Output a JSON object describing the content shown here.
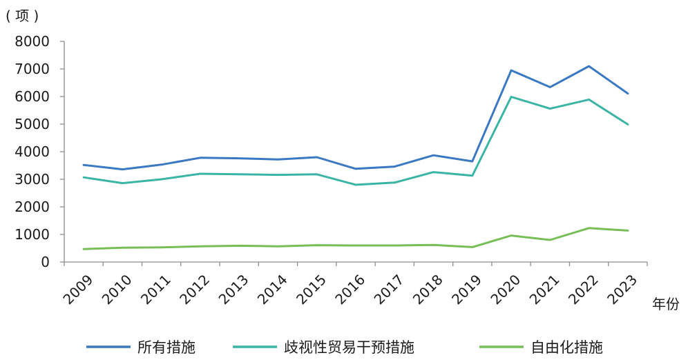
{
  "chart_data": {
    "type": "line",
    "y_unit": "( 项 )",
    "x_unit": "年份",
    "x": [
      "2009",
      "2010",
      "2011",
      "2012",
      "2013",
      "2014",
      "2015",
      "2016",
      "2017",
      "2018",
      "2019",
      "2020",
      "2021",
      "2022",
      "2023"
    ],
    "ylim": [
      0,
      8000
    ],
    "yticks": [
      "0",
      "1000",
      "2000",
      "3000",
      "4000",
      "5000",
      "6000",
      "7000",
      "8000"
    ],
    "grid": false,
    "legend_position": "bottom",
    "series": [
      {
        "name": "所有措施",
        "color": "#3a78c2",
        "values": [
          3520,
          3360,
          3530,
          3780,
          3760,
          3720,
          3800,
          3380,
          3460,
          3870,
          3650,
          6950,
          6340,
          7100,
          6110
        ]
      },
      {
        "name": "歧视性贸易干预措施",
        "color": "#3ab5a4",
        "values": [
          3070,
          2860,
          3000,
          3200,
          3180,
          3160,
          3180,
          2800,
          2880,
          3260,
          3130,
          5990,
          5560,
          5890,
          4990
        ]
      },
      {
        "name": "自由化措施",
        "color": "#76be55",
        "values": [
          470,
          520,
          530,
          570,
          590,
          570,
          610,
          600,
          600,
          620,
          540,
          960,
          800,
          1230,
          1140
        ]
      }
    ]
  }
}
